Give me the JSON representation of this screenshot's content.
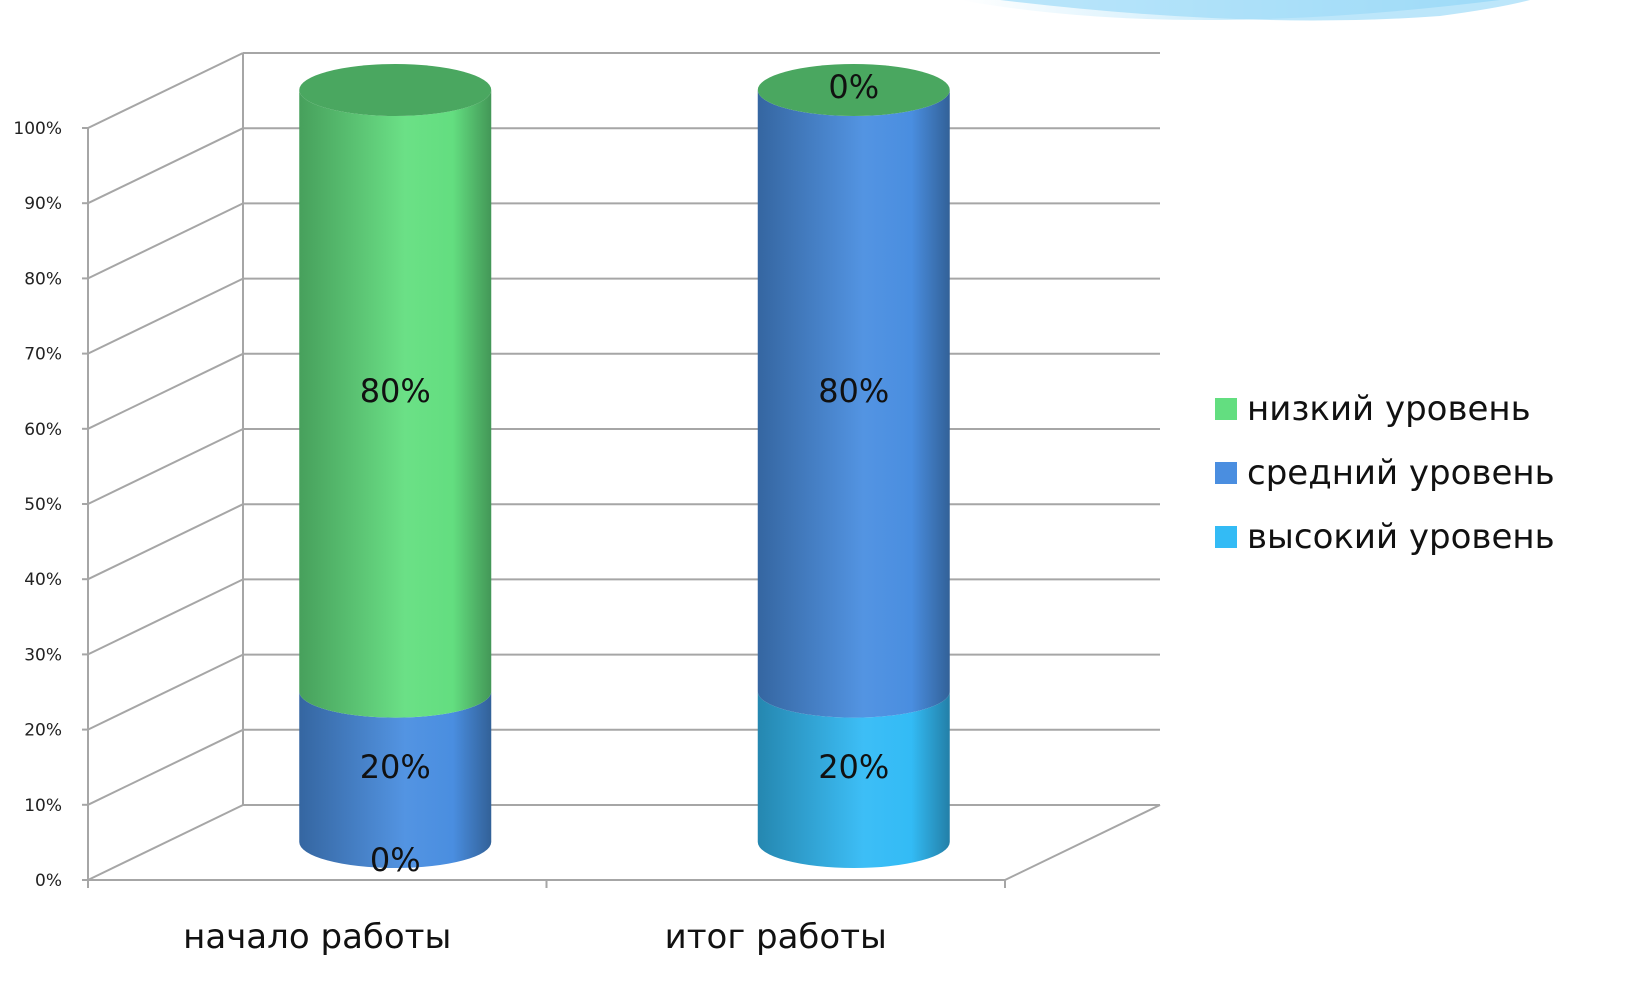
{
  "chart_data": {
    "type": "bar",
    "stacked": true,
    "style": "3d-cylinder",
    "categories": [
      "начало работы",
      "итог работы"
    ],
    "series": [
      {
        "name": "высокий уровень",
        "values": [
          0,
          20
        ],
        "color": "#33bbf5"
      },
      {
        "name": "средний уровень",
        "values": [
          20,
          80
        ],
        "color": "#4a8ee0"
      },
      {
        "name": "низкий уровень",
        "values": [
          80,
          0
        ],
        "color": "#63de80"
      }
    ],
    "y_ticks": [
      "0%",
      "10%",
      "20%",
      "30%",
      "40%",
      "50%",
      "60%",
      "70%",
      "80%",
      "90%",
      "100%"
    ],
    "ylim": [
      0,
      100
    ],
    "grid": true,
    "legend_position": "right",
    "legend_order": [
      "низкий уровень",
      "средний уровень",
      "высокий уровень"
    ],
    "data_labels": [
      {
        "category": "начало работы",
        "series": "высокий уровень",
        "text": "0%"
      },
      {
        "category": "начало работы",
        "series": "средний уровень",
        "text": "20%"
      },
      {
        "category": "начало работы",
        "series": "низкий уровень",
        "text": "80%"
      },
      {
        "category": "итог работы",
        "series": "высокий уровень",
        "text": "20%"
      },
      {
        "category": "итог работы",
        "series": "средний уровень",
        "text": "80%"
      },
      {
        "category": "итог работы",
        "series": "низкий уровень",
        "text": "0%"
      }
    ]
  }
}
